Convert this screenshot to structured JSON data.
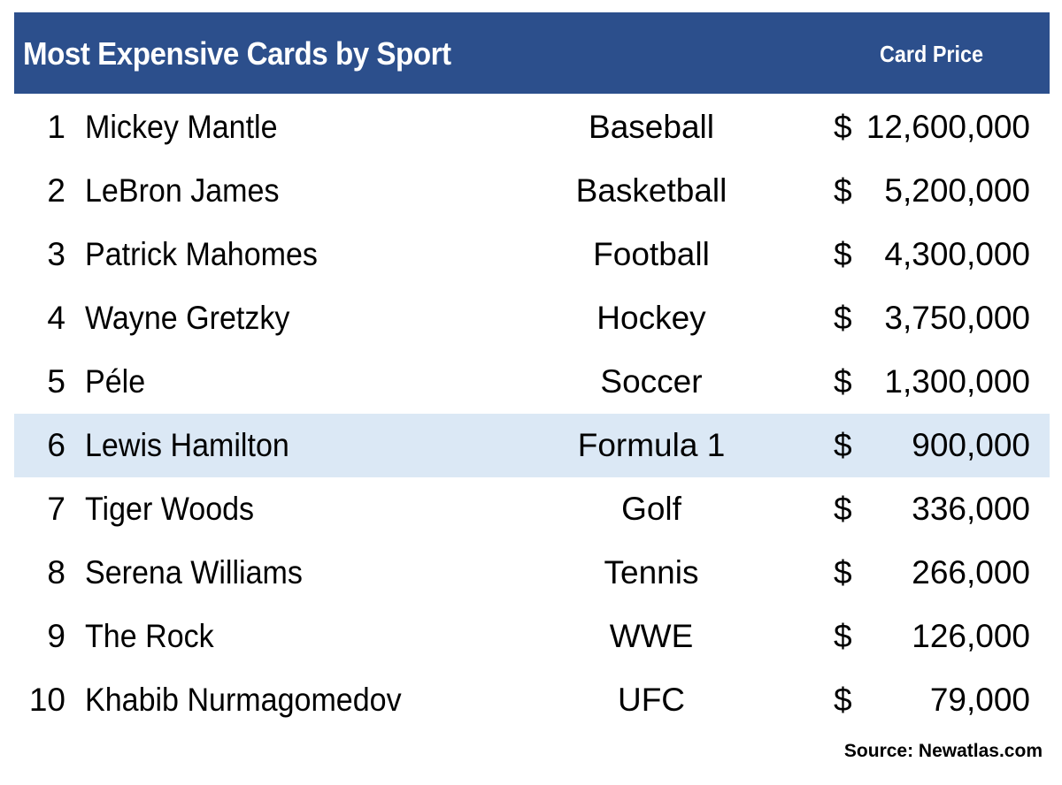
{
  "header": {
    "title": "Most Expensive Cards by Sport",
    "price_column": "Card Price"
  },
  "colors": {
    "header_bg": "#2c4f8c",
    "highlight_bg": "#dbe8f5"
  },
  "highlighted_rank": 6,
  "rows": [
    {
      "rank": "1",
      "name": "Mickey Mantle",
      "sport": "Baseball",
      "currency": "$",
      "price": "12,600,000"
    },
    {
      "rank": "2",
      "name": "LeBron James",
      "sport": "Basketball",
      "currency": "$",
      "price": "5,200,000"
    },
    {
      "rank": "3",
      "name": "Patrick Mahomes",
      "sport": "Football",
      "currency": "$",
      "price": "4,300,000"
    },
    {
      "rank": "4",
      "name": "Wayne Gretzky",
      "sport": "Hockey",
      "currency": "$",
      "price": "3,750,000"
    },
    {
      "rank": "5",
      "name": "Péle",
      "sport": "Soccer",
      "currency": "$",
      "price": "1,300,000"
    },
    {
      "rank": "6",
      "name": "Lewis Hamilton",
      "sport": "Formula 1",
      "currency": "$",
      "price": "900,000"
    },
    {
      "rank": "7",
      "name": "Tiger Woods",
      "sport": "Golf",
      "currency": "$",
      "price": "336,000"
    },
    {
      "rank": "8",
      "name": "Serena Williams",
      "sport": "Tennis",
      "currency": "$",
      "price": "266,000"
    },
    {
      "rank": "9",
      "name": "The Rock",
      "sport": "WWE",
      "currency": "$",
      "price": "126,000"
    },
    {
      "rank": "10",
      "name": "Khabib Nurmagomedov",
      "sport": "UFC",
      "currency": "$",
      "price": "79,000"
    }
  ],
  "footer": {
    "source": "Source: Newatlas.com"
  }
}
